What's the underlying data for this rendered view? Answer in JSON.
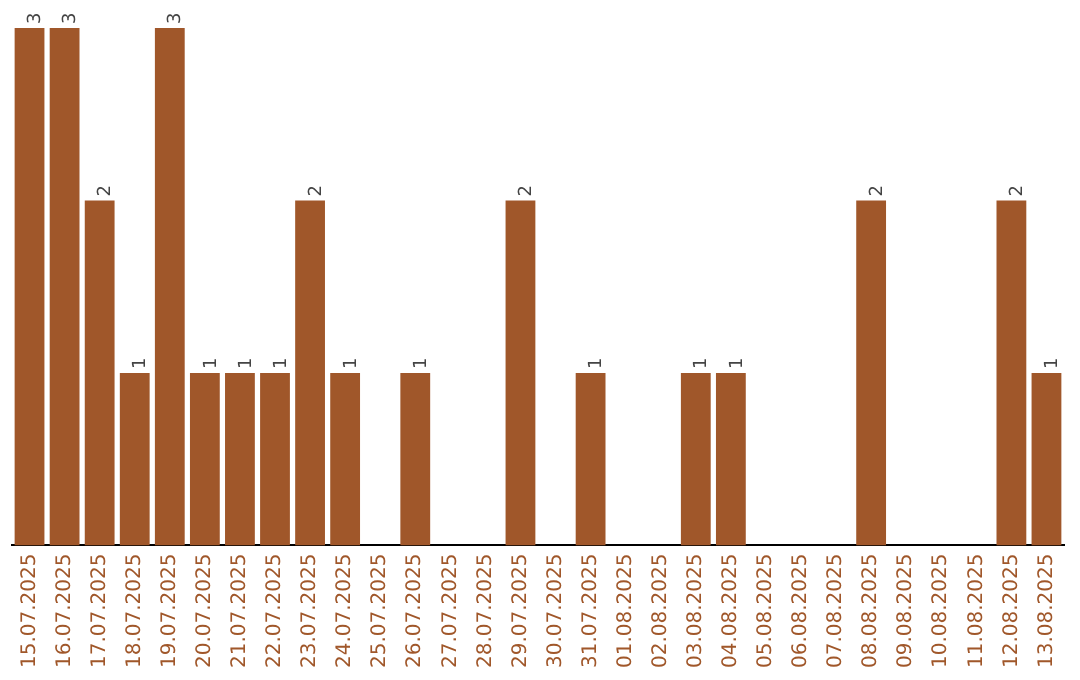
{
  "chart_data": {
    "type": "bar",
    "categories": [
      "15.07.2025",
      "16.07.2025",
      "17.07.2025",
      "18.07.2025",
      "19.07.2025",
      "20.07.2025",
      "21.07.2025",
      "22.07.2025",
      "23.07.2025",
      "24.07.2025",
      "25.07.2025",
      "26.07.2025",
      "27.07.2025",
      "28.07.2025",
      "29.07.2025",
      "30.07.2025",
      "31.07.2025",
      "01.08.2025",
      "02.08.2025",
      "03.08.2025",
      "04.08.2025",
      "05.08.2025",
      "06.08.2025",
      "07.08.2025",
      "08.08.2025",
      "09.08.2025",
      "10.08.2025",
      "11.08.2025",
      "12.08.2025",
      "13.08.2025"
    ],
    "values": [
      3,
      3,
      2,
      1,
      3,
      1,
      1,
      1,
      2,
      1,
      0,
      1,
      0,
      0,
      2,
      0,
      1,
      0,
      0,
      1,
      1,
      0,
      0,
      0,
      2,
      0,
      0,
      0,
      2,
      1
    ],
    "value_labels": [
      "3",
      "3",
      "2",
      "1",
      "3",
      "1",
      "1",
      "1",
      "2",
      "1",
      null,
      "1",
      null,
      null,
      "2",
      null,
      "1",
      null,
      null,
      "1",
      "1",
      null,
      null,
      null,
      "2",
      null,
      null,
      null,
      "2",
      "1"
    ],
    "color": "#a0572a",
    "grid": false,
    "legend": false,
    "tick_labels": "x"
  }
}
